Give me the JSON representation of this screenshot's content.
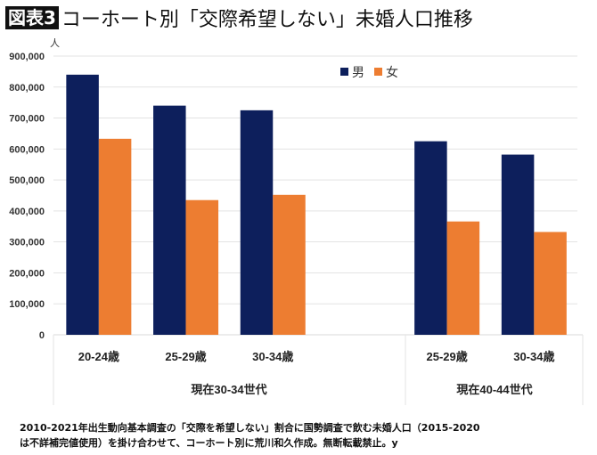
{
  "title": {
    "badge": "図表3",
    "text": "コーホート別「交際希望しない」未婚人口推移"
  },
  "note": {
    "line1": "2010-2021年出生動向基本調査の「交際を希望しない」割合に国勢調査で飲む未婚人口（2015-2020",
    "line2": "は不詳補完値使用）を掛け合わせて、コーホート別に荒川和久作成。無断転載禁止。y"
  },
  "chart_data": {
    "type": "bar",
    "title": "コーホート別「交際希望しない」未婚人口推移",
    "ylabel": "人",
    "ylim": [
      0,
      900000
    ],
    "yticks": [
      "0",
      "100,000",
      "200,000",
      "300,000",
      "400,000",
      "500,000",
      "600,000",
      "700,000",
      "800,000",
      "900,000"
    ],
    "grid": true,
    "legend_placement": "top-center",
    "groups": [
      {
        "label": "現在30-34世代",
        "categories": [
          "20-24歳",
          "25-29歳",
          "30-34歳"
        ]
      },
      {
        "label": "現在40-44世代",
        "categories": [
          "25-29歳",
          "30-34歳"
        ]
      }
    ],
    "categories": [
      "20-24歳",
      "25-29歳",
      "30-34歳",
      "25-29歳",
      "30-34歳"
    ],
    "series": [
      {
        "name": "男",
        "color": "#0d1f5c",
        "values": [
          840000,
          740000,
          725000,
          625000,
          582000
        ]
      },
      {
        "name": "女",
        "color": "#ed7d31",
        "values": [
          633000,
          435000,
          452000,
          366000,
          332000
        ]
      }
    ]
  }
}
